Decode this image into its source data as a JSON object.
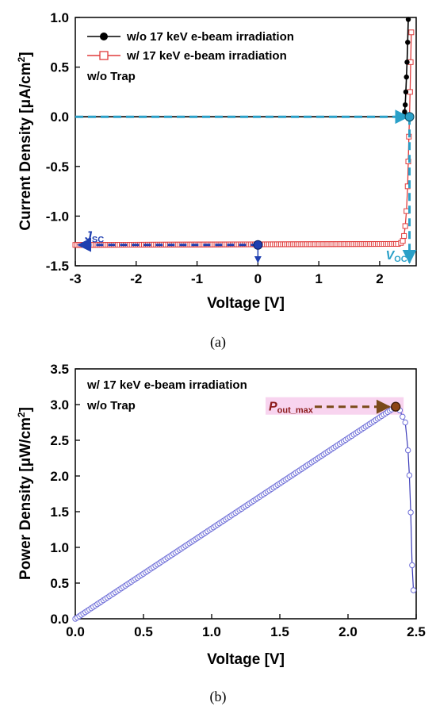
{
  "chart_data": [
    {
      "type": "line",
      "panel_label": "(a)",
      "xlabel": "Voltage [V]",
      "ylabel_main": "Current Density [",
      "ylabel_mu": "μ",
      "ylabel_unit": "A/cm",
      "ylabel_sup": "2",
      "ylabel_close": "]",
      "xlim": [
        -3,
        2.6
      ],
      "ylim": [
        -1.5,
        1.0
      ],
      "xticks": [
        "-3",
        "-2",
        "-1",
        "0",
        "1",
        "2"
      ],
      "xtick_values": [
        -3,
        -2,
        -1,
        0,
        1,
        2
      ],
      "yticks": [
        "-1.5",
        "-1.0",
        "-0.5",
        "0.0",
        "0.5",
        "1.0"
      ],
      "ytick_values": [
        -1.5,
        -1.0,
        -0.5,
        0.0,
        0.5,
        1.0
      ],
      "legend_placement": "top-left",
      "note": "w/o Trap",
      "series": [
        {
          "name": "w/o 17 keV e-beam irradiation",
          "color": "#000000",
          "marker": "filled-circle",
          "x": [
            2.38,
            2.4,
            2.41,
            2.42,
            2.43,
            2.44,
            2.45,
            2.46,
            2.47
          ],
          "y": [
            0.0,
            0.02,
            0.05,
            0.12,
            0.25,
            0.4,
            0.55,
            0.75,
            0.98
          ]
        },
        {
          "name": "w/ 17 keV e-beam irradiation",
          "color": "#e03c3c",
          "marker": "open-square",
          "x": [
            -3.0,
            2.3,
            2.35,
            2.38,
            2.4,
            2.42,
            2.44,
            2.46,
            2.47,
            2.48,
            2.49,
            2.5,
            2.51,
            2.52
          ],
          "y": [
            -1.29,
            -1.28,
            -1.27,
            -1.25,
            -1.2,
            -1.1,
            -0.95,
            -0.7,
            -0.45,
            -0.2,
            0.0,
            0.25,
            0.55,
            0.85
          ]
        }
      ],
      "isc_annotation": {
        "label": "J",
        "sub": "SC",
        "x": 0,
        "y": -1.29,
        "color": "#1f3fb0"
      },
      "voc_annotation": {
        "label": "V",
        "sub": "OC",
        "x": 2.49,
        "y": 0.0,
        "color": "#2aa0c8"
      }
    },
    {
      "type": "line",
      "panel_label": "(b)",
      "xlabel": "Voltage [V]",
      "ylabel_main": "Power Density [",
      "ylabel_mu": "μ",
      "ylabel_unit": "W/cm",
      "ylabel_sup": "2",
      "ylabel_close": "]",
      "xlim": [
        0.0,
        2.5
      ],
      "ylim": [
        0.0,
        3.5
      ],
      "xticks": [
        "0.0",
        "0.5",
        "1.0",
        "1.5",
        "2.0",
        "2.5"
      ],
      "xtick_values": [
        0.0,
        0.5,
        1.0,
        1.5,
        2.0,
        2.5
      ],
      "yticks": [
        "0.0",
        "0.5",
        "1.0",
        "1.5",
        "2.0",
        "2.5",
        "3.0",
        "3.5"
      ],
      "ytick_values": [
        0.0,
        0.5,
        1.0,
        1.5,
        2.0,
        2.5,
        3.0,
        3.5
      ],
      "legend_lines": [
        "w/ 17 keV e-beam irradiation",
        "w/o Trap"
      ],
      "series": [
        {
          "name": "w/ 17 keV e-beam irradiation",
          "color": "#3a3ab8",
          "marker": "open-circle",
          "x": [
            0.0,
            2.35,
            2.38,
            2.4,
            2.42,
            2.44,
            2.45,
            2.46,
            2.47,
            2.48
          ],
          "y": [
            0.0,
            2.97,
            2.92,
            2.83,
            2.75,
            2.36,
            2.01,
            1.49,
            0.75,
            0.4
          ]
        }
      ],
      "pmax_annotation": {
        "label": "P",
        "sub": "out_max",
        "x": 2.35,
        "y": 2.97,
        "color": "#8b1a1a",
        "arrow_color": "#7a4a1a"
      }
    }
  ]
}
